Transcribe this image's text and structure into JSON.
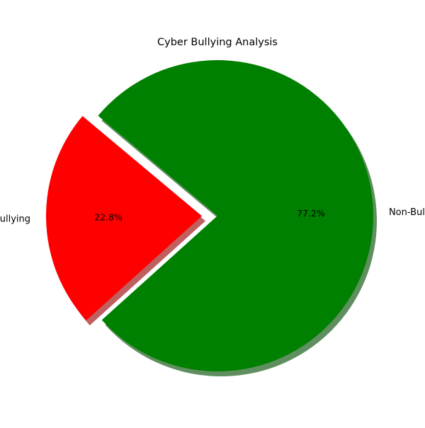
{
  "chart_data": {
    "type": "pie",
    "title": "Cyber Bullying Analysis",
    "slices": [
      {
        "label": "Bullying",
        "value": 22.8,
        "pct_label": "22.8%",
        "color": "#ff0000",
        "exploded": true
      },
      {
        "label": "Non-Bullying",
        "value": 77.2,
        "pct_label": "77.2%",
        "color": "#008000",
        "exploded": false
      }
    ],
    "shadow": true,
    "legend": "none"
  }
}
